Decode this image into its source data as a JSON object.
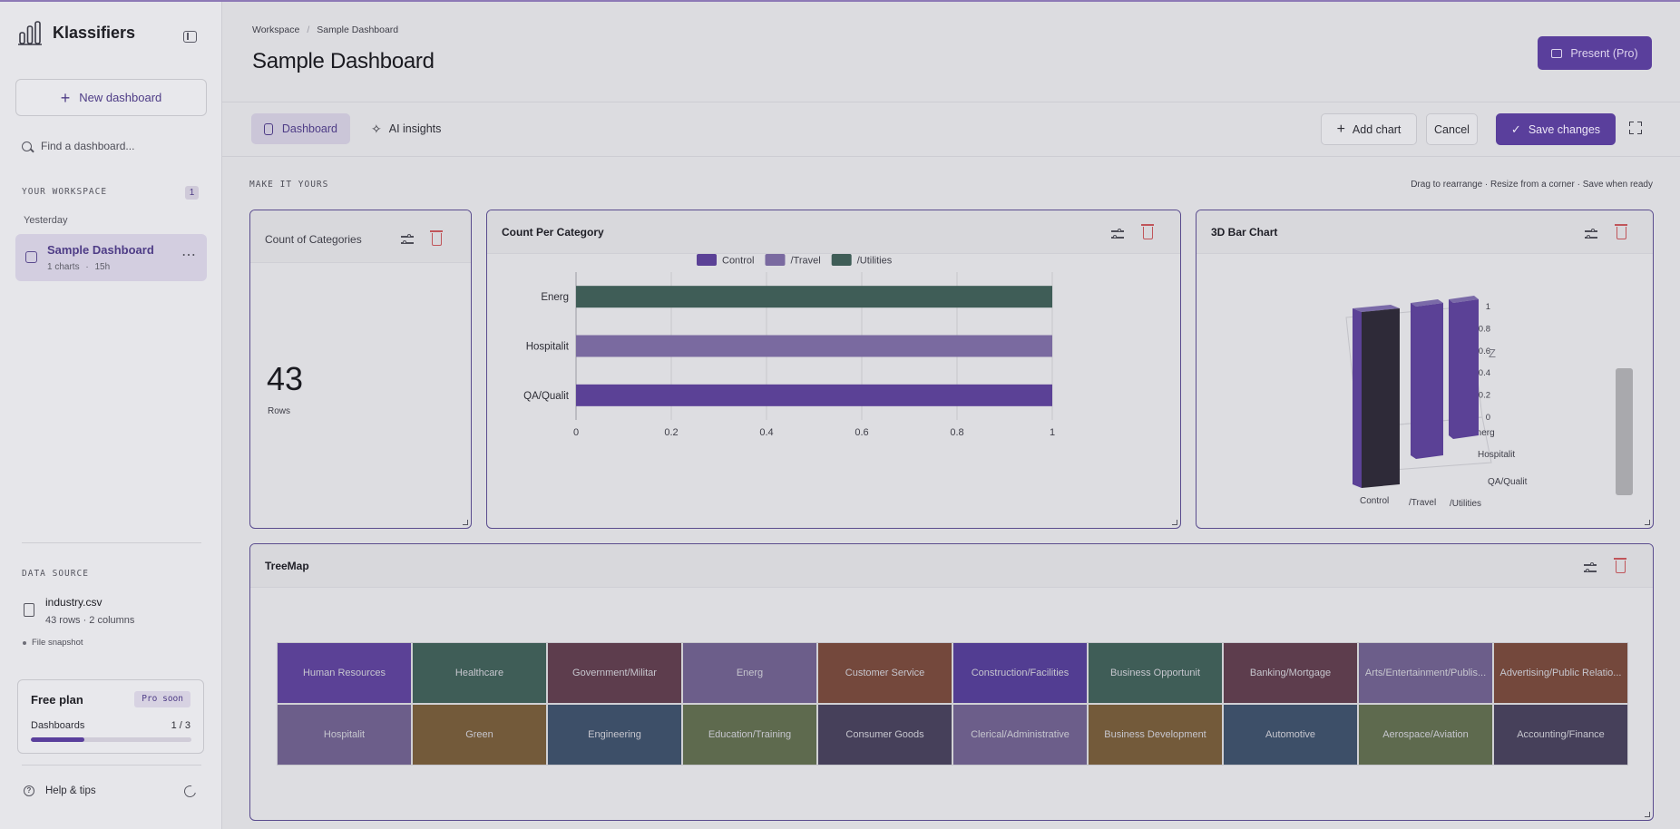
{
  "app": {
    "brand": "Klassifiers",
    "new_dashboard": "New dashboard",
    "search_placeholder": "Find a dashboard...",
    "workspace_label": "YOUR WORKSPACE",
    "workspace_count": "1",
    "group_label": "Yesterday",
    "dashboard_item": {
      "title": "Sample Dashboard",
      "charts": "1 charts",
      "sep": "·",
      "age": "15h"
    },
    "data_source_label": "DATA SOURCE",
    "file": {
      "name": "industry.csv",
      "meta": "43 rows · 2 columns",
      "snapshot": "File snapshot"
    },
    "plan": {
      "name": "Free plan",
      "badge": "Pro soon",
      "label": "Dashboards",
      "count": "1 / 3",
      "usage_fraction": 0.333
    },
    "help": "Help & tips"
  },
  "header": {
    "crumb1": "Workspace",
    "crumb_sep": "/",
    "crumb2": "Sample Dashboard",
    "title": "Sample Dashboard",
    "present": "Present (Pro)"
  },
  "toolbar": {
    "tab_dashboard": "Dashboard",
    "tab_ai": "AI insights",
    "add_chart": "Add chart",
    "cancel": "Cancel",
    "save": "Save changes"
  },
  "canvas": {
    "label": "MAKE IT YOURS",
    "hint": "Drag to rearrange · Resize from a corner · Save when ready"
  },
  "colors": {
    "accent": "#5a3f9c",
    "c1": "#5b4196",
    "c2": "#7a6aa0",
    "c3": "#3f5d57",
    "danger": "#c0555a"
  },
  "cards": {
    "kpi": {
      "title": "Count of Categories",
      "value": "43",
      "label": "Rows"
    },
    "bar": {
      "title": "Count Per Category"
    },
    "bar3d": {
      "title": "3D Bar Chart"
    },
    "treemap": {
      "title": "TreeMap"
    }
  },
  "chart_data": [
    {
      "type": "bar",
      "orientation": "horizontal",
      "title": "Count Per Category",
      "categories": [
        "Energ",
        "Hospitalit",
        "QA/Qualit"
      ],
      "series": [
        {
          "name": "Control",
          "values": [
            0,
            0,
            1
          ]
        },
        {
          "name": "/Travel",
          "values": [
            0,
            1,
            0
          ]
        },
        {
          "name": "/Utilities",
          "values": [
            1,
            0,
            0
          ]
        }
      ],
      "xlim": [
        0,
        1
      ],
      "xticks": [
        "0",
        "0.2",
        "0.4",
        "0.6",
        "0.8",
        "1"
      ],
      "grid": true,
      "legend": "top-center"
    },
    {
      "type": "bar",
      "projection": "3d",
      "title": "3D Bar Chart",
      "x_categories": [
        "Control",
        "/Travel",
        "/Utilities"
      ],
      "y_categories": [
        "Energ",
        "Hospitalit",
        "QA/Qualit"
      ],
      "z_axis_label": "Z",
      "zticks": [
        "0",
        "0.2",
        "0.4",
        "0.6",
        "0.8",
        "1"
      ],
      "values": [
        1,
        1,
        1
      ],
      "zlim": [
        0,
        1
      ]
    },
    {
      "type": "treemap",
      "title": "TreeMap",
      "items": [
        {
          "label": "Human Resources",
          "color": "#5b4196"
        },
        {
          "label": "Healthcare",
          "color": "#3f5d57"
        },
        {
          "label": "Government/Militar",
          "color": "#5d3d4d"
        },
        {
          "label": "Energ",
          "color": "#6c5e8a"
        },
        {
          "label": "Customer Service",
          "color": "#74483c"
        },
        {
          "label": "Construction/Facilities",
          "color": "#523d92"
        },
        {
          "label": "Business Opportunit",
          "color": "#3f5d57"
        },
        {
          "label": "Banking/Mortgage",
          "color": "#5d3d4d"
        },
        {
          "label": "Arts/Entertainment/Publis...",
          "color": "#6c5e8a"
        },
        {
          "label": "Advertising/Public Relatio...",
          "color": "#74483c"
        },
        {
          "label": "Hospitalit",
          "color": "#6c5e8a"
        },
        {
          "label": "Green",
          "color": "#735a3a"
        },
        {
          "label": "Engineering",
          "color": "#3d4f68"
        },
        {
          "label": "Education/Training",
          "color": "#5e6a4e"
        },
        {
          "label": "Consumer Goods",
          "color": "#46405a"
        },
        {
          "label": "Clerical/Administrative",
          "color": "#6c5e8a"
        },
        {
          "label": "Business Development",
          "color": "#735a3a"
        },
        {
          "label": "Automotive",
          "color": "#3d4f68"
        },
        {
          "label": "Aerospace/Aviation",
          "color": "#5e6a4e"
        },
        {
          "label": "Accounting/Finance",
          "color": "#46405a"
        }
      ]
    }
  ]
}
